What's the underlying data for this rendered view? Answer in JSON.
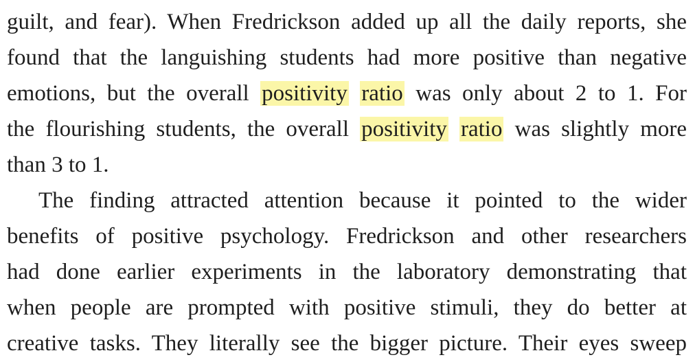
{
  "paragraph1": {
    "line1": "guilt, and fear). When Fredrickson added up all the daily reports, she",
    "line2": "found that the languishing students had more positive than negative",
    "line3": {
      "before": "emotions, but the overall",
      "highlight1": "positivity",
      "highlight2": "ratio",
      "after": "was only about 2 to 1. For"
    },
    "line4": {
      "before": "the flourishing students, the overall",
      "highlight1": "positivity",
      "highlight2": "ratio",
      "after": "was slightly more"
    },
    "line5": "than 3 to 1."
  },
  "paragraph2": {
    "line1": "The finding attracted attention because it pointed to the wider",
    "line2": "benefits of positive psychology. Fredrickson and other researchers",
    "line3": "had done earlier experiments in the laboratory demonstrating that",
    "line4": "when people are prompted with positive stimuli, they do better at",
    "line5": "creative tasks. They literally see the bigger picture. Their eyes sweep"
  },
  "colors": {
    "highlight": "#fbf6a8",
    "text": "#1e1e1e",
    "background": "#ffffff"
  }
}
